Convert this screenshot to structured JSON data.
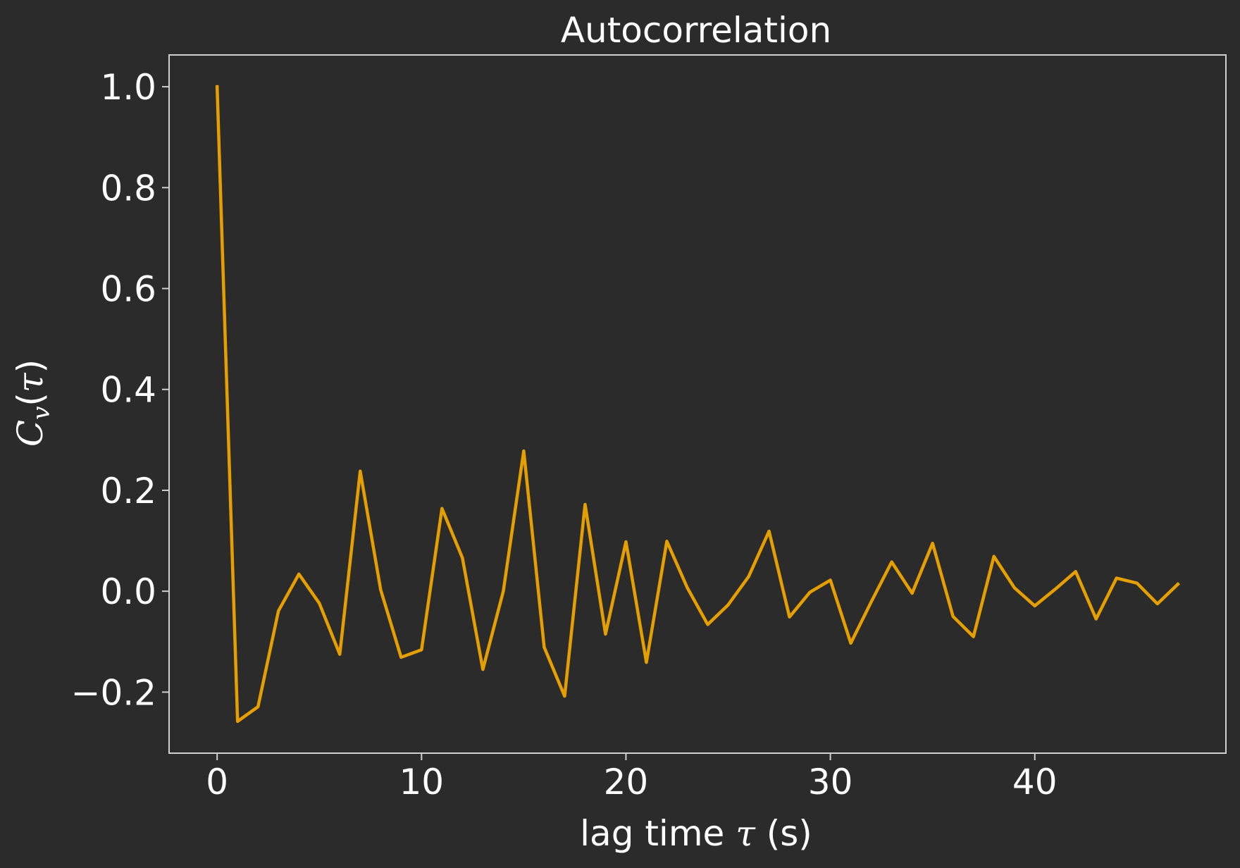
{
  "chart_data": {
    "type": "line",
    "title": "Autocorrelation",
    "xlabel": {
      "prefix": "lag time ",
      "symbol": "τ",
      "suffix": " (s)"
    },
    "ylabel": {
      "base": "C",
      "subscript": "v",
      "open": "(",
      "symbol": "τ",
      "close": ")"
    },
    "xlim": [
      -2.35,
      49.35
    ],
    "ylim": [
      -0.321,
      1.063
    ],
    "xticks": [
      0,
      10,
      20,
      30,
      40
    ],
    "xtick_labels": [
      "0",
      "10",
      "20",
      "30",
      "40"
    ],
    "yticks": [
      -0.2,
      0.0,
      0.2,
      0.4,
      0.6,
      0.8,
      1.0
    ],
    "ytick_labels": [
      "−0.2",
      "0.0",
      "0.2",
      "0.4",
      "0.6",
      "0.8",
      "1.0"
    ],
    "grid": false,
    "series": [
      {
        "color": "#e69f00",
        "x": [
          0,
          1,
          2,
          3,
          4,
          5,
          6,
          7,
          8,
          9,
          10,
          11,
          12,
          13,
          14,
          15,
          16,
          17,
          18,
          19,
          20,
          21,
          22,
          23,
          24,
          25,
          26,
          27,
          28,
          29,
          30,
          31,
          32,
          33,
          34,
          35,
          36,
          37,
          38,
          39,
          40,
          41,
          42,
          43,
          44,
          45,
          46,
          47
        ],
        "y": [
          1.0,
          -0.258,
          -0.229,
          -0.039,
          0.034,
          -0.024,
          -0.125,
          0.238,
          0.003,
          -0.131,
          -0.116,
          0.164,
          0.066,
          -0.155,
          0.0,
          0.278,
          -0.111,
          -0.208,
          0.172,
          -0.085,
          0.098,
          -0.141,
          0.099,
          0.007,
          -0.066,
          -0.027,
          0.029,
          0.119,
          -0.051,
          -0.002,
          0.022,
          -0.103,
          -0.021,
          0.058,
          -0.004,
          0.095,
          -0.05,
          -0.09,
          0.069,
          0.007,
          -0.029,
          0.004,
          0.039,
          -0.055,
          0.026,
          0.016,
          -0.025,
          0.014
        ]
      }
    ]
  },
  "colors": {
    "background": "#2b2b2b",
    "axes_edge": "#d0d0d0",
    "text": "#ffffff",
    "line": "#e69f00"
  }
}
